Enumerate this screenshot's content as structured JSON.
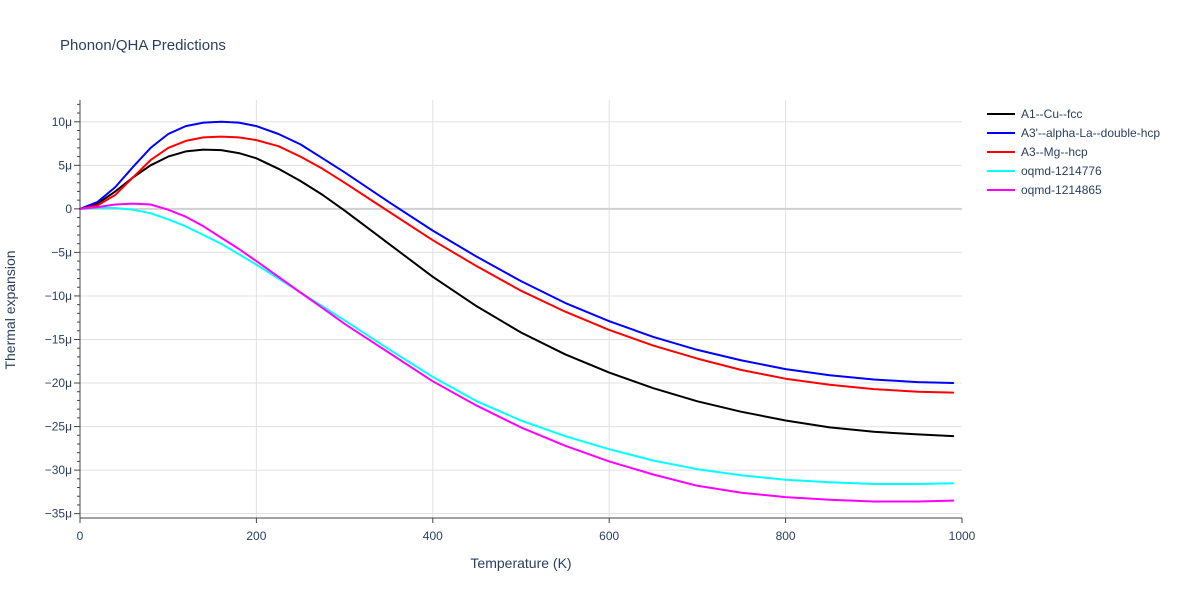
{
  "chart_data": {
    "type": "line",
    "title": "Phonon/QHA Predictions",
    "xlabel": "Temperature (K)",
    "ylabel": "Thermal expansion",
    "xlim": [
      0,
      1000
    ],
    "ylim": [
      -35.5,
      12.5
    ],
    "x_ticks": [
      0,
      200,
      400,
      600,
      800,
      1000
    ],
    "x_tick_labels": [
      "0",
      "200",
      "400",
      "600",
      "800",
      "1000"
    ],
    "y_ticks": [
      10,
      5,
      0,
      -5,
      -10,
      -15,
      -20,
      -25,
      -30,
      -35
    ],
    "y_tick_labels": [
      "10μ",
      "5μ",
      "0",
      "−5μ",
      "−10μ",
      "−15μ",
      "−20μ",
      "−25μ",
      "−30μ",
      "−35μ"
    ],
    "grid": true,
    "legend_position": "top-right",
    "x": [
      0,
      20,
      40,
      60,
      80,
      100,
      120,
      140,
      160,
      180,
      200,
      225,
      250,
      275,
      300,
      350,
      400,
      450,
      500,
      550,
      600,
      650,
      700,
      750,
      800,
      850,
      900,
      950,
      990
    ],
    "series": [
      {
        "name": "A1--Cu--fcc",
        "color": "#000000",
        "values": [
          0,
          0.6,
          2.0,
          3.6,
          5.0,
          6.0,
          6.6,
          6.8,
          6.75,
          6.4,
          5.8,
          4.6,
          3.2,
          1.6,
          -0.2,
          -4.0,
          -7.8,
          -11.2,
          -14.2,
          -16.7,
          -18.8,
          -20.6,
          -22.1,
          -23.3,
          -24.3,
          -25.1,
          -25.6,
          -25.9,
          -26.1
        ]
      },
      {
        "name": "A3'--alpha-La--double-hcp",
        "color": "#0000ff",
        "values": [
          0,
          0.8,
          2.5,
          4.8,
          7.0,
          8.6,
          9.5,
          9.9,
          10.0,
          9.9,
          9.5,
          8.6,
          7.4,
          5.8,
          4.2,
          0.8,
          -2.5,
          -5.5,
          -8.3,
          -10.8,
          -12.9,
          -14.7,
          -16.2,
          -17.4,
          -18.4,
          -19.1,
          -19.6,
          -19.9,
          -20.0
        ]
      },
      {
        "name": "A3--Mg--hcp",
        "color": "#ff0000",
        "values": [
          0,
          0.4,
          1.6,
          3.6,
          5.6,
          7.0,
          7.8,
          8.2,
          8.3,
          8.2,
          7.9,
          7.2,
          6.0,
          4.6,
          3.0,
          -0.3,
          -3.6,
          -6.6,
          -9.4,
          -11.8,
          -13.9,
          -15.7,
          -17.2,
          -18.5,
          -19.5,
          -20.2,
          -20.7,
          -21.0,
          -21.1
        ]
      },
      {
        "name": "oqmd-1214776",
        "color": "#00ffff",
        "values": [
          0,
          0.1,
          0.1,
          -0.1,
          -0.5,
          -1.2,
          -2.0,
          -3.0,
          -4.0,
          -5.2,
          -6.4,
          -8.0,
          -9.6,
          -11.2,
          -12.8,
          -16.1,
          -19.3,
          -22.1,
          -24.3,
          -26.1,
          -27.6,
          -28.9,
          -29.9,
          -30.6,
          -31.1,
          -31.4,
          -31.6,
          -31.6,
          -31.5
        ]
      },
      {
        "name": "oqmd-1214865",
        "color": "#ff00ff",
        "values": [
          0,
          0.2,
          0.5,
          0.6,
          0.5,
          -0.1,
          -0.9,
          -2.0,
          -3.3,
          -4.6,
          -6.0,
          -7.8,
          -9.6,
          -11.4,
          -13.2,
          -16.5,
          -19.8,
          -22.6,
          -25.1,
          -27.2,
          -29.0,
          -30.5,
          -31.8,
          -32.6,
          -33.1,
          -33.4,
          -33.6,
          -33.6,
          -33.5
        ]
      }
    ]
  }
}
